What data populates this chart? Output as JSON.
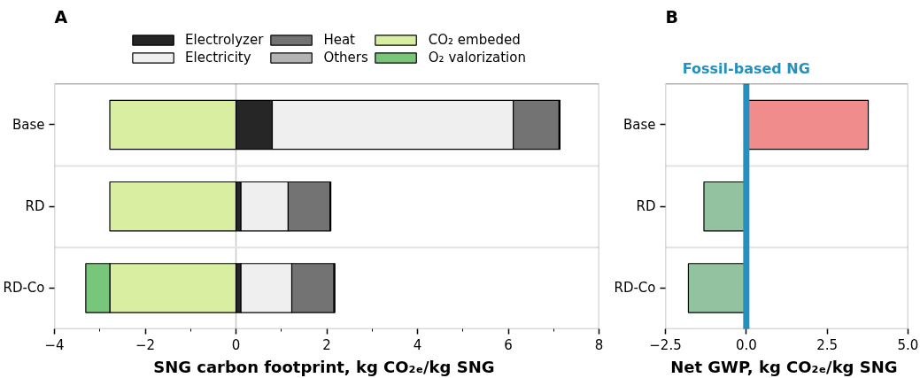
{
  "chart_data": [
    {
      "type": "bar",
      "title": "A",
      "orientation": "horizontal",
      "stacked": true,
      "categories": [
        "Base",
        "RD",
        "RD-Co"
      ],
      "series": [
        {
          "name": "Electrolyzer",
          "color": "#262626",
          "values": [
            0.8,
            0.11,
            0.11
          ]
        },
        {
          "name": "Electricity",
          "color": "#efefef",
          "values": [
            5.31,
            1.04,
            1.12
          ]
        },
        {
          "name": "Heat",
          "color": "#737373",
          "values": [
            1.01,
            0.92,
            0.93
          ]
        },
        {
          "name": "Others",
          "color": "#b3b3b3",
          "values": [
            0.02,
            0.02,
            0.02
          ]
        },
        {
          "name": "CO₂ embeded",
          "color": "#d9eea0",
          "values": [
            -2.78,
            -2.78,
            -2.78
          ]
        },
        {
          "name": "O₂ valorization",
          "color": "#78c679",
          "values": [
            null,
            null,
            -0.53
          ]
        }
      ],
      "xlim": [
        -4,
        8
      ],
      "xticks": [
        {
          "value": -4,
          "label": "−4"
        },
        {
          "value": -2,
          "label": "−2"
        },
        0,
        2,
        4,
        6,
        8
      ],
      "xlabel": "SNG carbon footprint,  kg CO₂ₑ/kg SNG",
      "ref_lines": [
        {
          "axis": "x",
          "value": 0,
          "color": "#c8c8c8"
        }
      ],
      "grid": "y",
      "legend": "top"
    },
    {
      "type": "bar",
      "title": "B",
      "orientation": "horizontal",
      "categories": [
        "Base",
        "RD",
        "RD-Co"
      ],
      "values": [
        3.77,
        -1.31,
        -1.79
      ],
      "colors": [
        "#f08c8c",
        "#93c2a1",
        "#93c2a1"
      ],
      "xlim": [
        -2.5,
        5
      ],
      "xticks": [
        {
          "value": -2.5,
          "label": "−2.5"
        },
        {
          "value": 0,
          "label": "0.0"
        },
        {
          "value": 2.5,
          "label": "2.5"
        },
        {
          "value": 5,
          "label": "5.0"
        }
      ],
      "xlabel": "Net GWP,  kg CO₂ₑ/kg SNG",
      "ref_lines": [
        {
          "axis": "x",
          "value": 0,
          "label": "Fossil-based NG",
          "color": "#2590c0"
        }
      ],
      "grid": "y"
    }
  ]
}
